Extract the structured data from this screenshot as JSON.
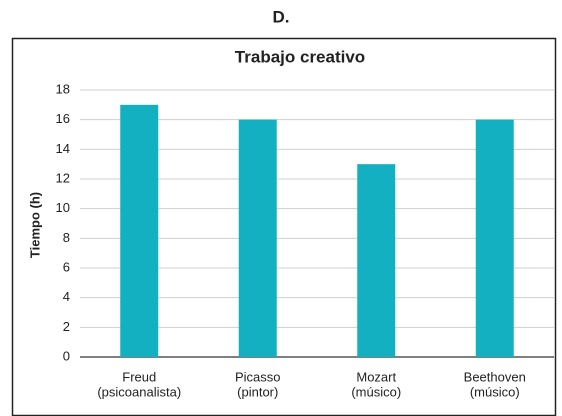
{
  "heading": "D.",
  "chart_data": {
    "type": "bar",
    "title": "Trabajo creativo",
    "ylabel": "Tiempo (h)",
    "categories": [
      [
        "Freud",
        "(psicoanalista)"
      ],
      [
        "Picasso",
        "(pintor)"
      ],
      [
        "Mozart",
        "(músico)"
      ],
      [
        "Beethoven",
        "(músico)"
      ]
    ],
    "values": [
      17,
      16,
      13,
      16
    ],
    "color": "#13b0c2",
    "ylim": [
      0,
      18
    ],
    "yticks": [
      0,
      2,
      4,
      6,
      8,
      10,
      12,
      14,
      16,
      18
    ],
    "grid": true
  }
}
